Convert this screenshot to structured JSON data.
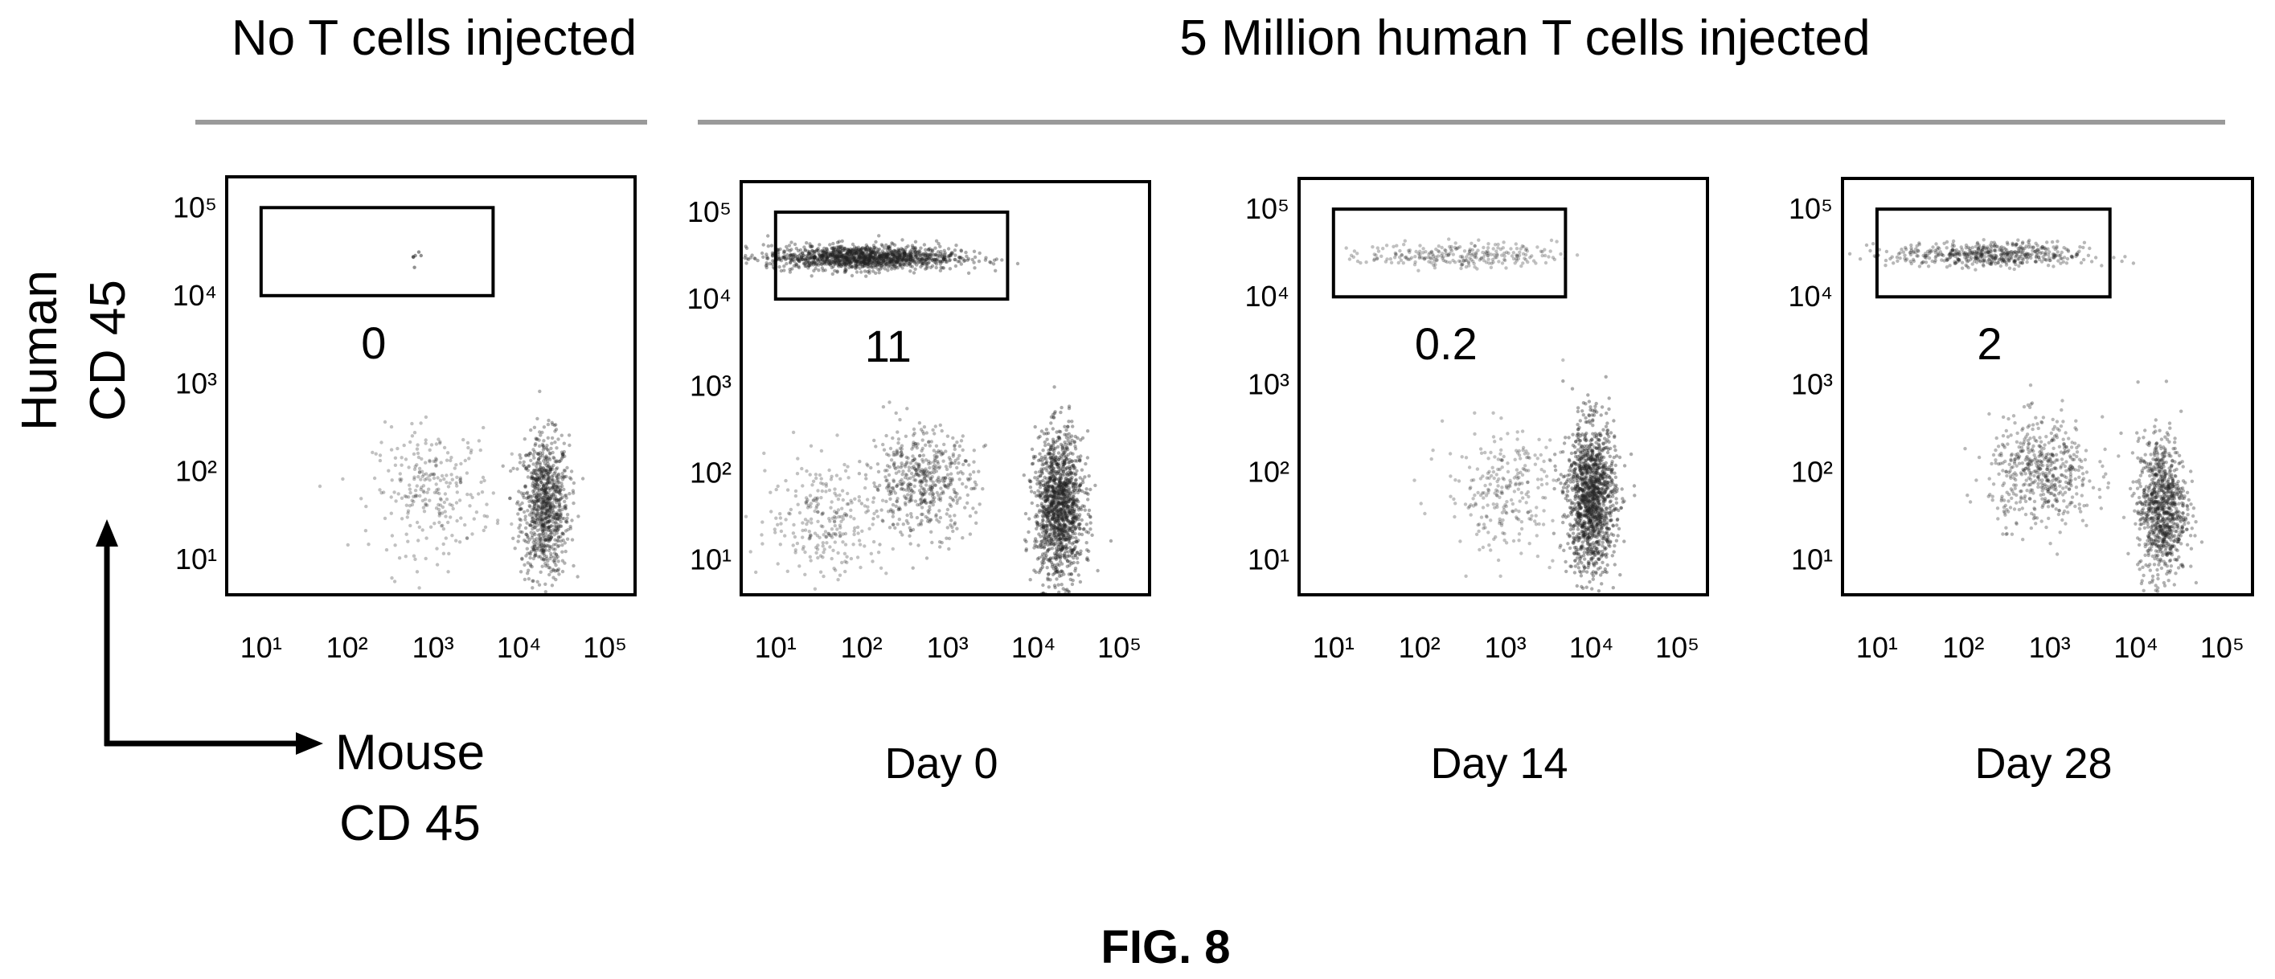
{
  "group_labels": {
    "control": "No T cells injected",
    "treated": "5 Million human T cells injected"
  },
  "axis_labels": {
    "y_line1": "Human",
    "y_line2": "CD 45",
    "x_line1": "Mouse",
    "x_line2": "CD 45"
  },
  "figure_label": "FIG. 8",
  "chart_data": [
    {
      "type": "scatter",
      "subtitle": "",
      "xlabel": "Mouse CD 45",
      "ylabel": "Human CD 45",
      "x_scale": "log",
      "y_scale": "log",
      "xticks": [
        "10¹",
        "10²",
        "10³",
        "10⁴",
        "10⁵"
      ],
      "yticks": [
        "10¹",
        "10²",
        "10³",
        "10⁴",
        "10⁵"
      ],
      "gate_percent": "0",
      "gate": {
        "x_range": [
          10,
          5000
        ],
        "y_range": [
          10000,
          100000
        ]
      },
      "populations": [
        {
          "x": 20000,
          "y": 40,
          "density": "high"
        },
        {
          "x": 1000,
          "y": 60,
          "density": "low"
        },
        {
          "x": 600,
          "y": 30000,
          "density": "trace"
        }
      ]
    },
    {
      "type": "scatter",
      "subtitle": "Day 0",
      "xlabel": "Mouse CD 45",
      "ylabel": "Human CD 45",
      "x_scale": "log",
      "y_scale": "log",
      "xticks": [
        "10¹",
        "10²",
        "10³",
        "10⁴",
        "10⁵"
      ],
      "yticks": [
        "10¹",
        "10²",
        "10³",
        "10⁴",
        "10⁵"
      ],
      "gate_percent": "11",
      "gate": {
        "x_range": [
          10,
          5000
        ],
        "y_range": [
          10000,
          100000
        ]
      },
      "populations": [
        {
          "x": 100,
          "y": 30000,
          "density": "very high"
        },
        {
          "x": 20000,
          "y": 40,
          "density": "very high"
        },
        {
          "x": 500,
          "y": 80,
          "density": "medium"
        },
        {
          "x": 40,
          "y": 30,
          "density": "low"
        }
      ]
    },
    {
      "type": "scatter",
      "subtitle": "Day 14",
      "xlabel": "Mouse CD 45",
      "ylabel": "Human CD 45",
      "x_scale": "log",
      "y_scale": "log",
      "xticks": [
        "10¹",
        "10²",
        "10³",
        "10⁴",
        "10⁵"
      ],
      "yticks": [
        "10¹",
        "10²",
        "10³",
        "10⁴",
        "10⁵"
      ],
      "gate_percent": "0.2",
      "gate": {
        "x_range": [
          10,
          5000
        ],
        "y_range": [
          10000,
          100000
        ]
      },
      "populations": [
        {
          "x": 10000,
          "y": 50,
          "density": "very high"
        },
        {
          "x": 1000,
          "y": 60,
          "density": "low"
        },
        {
          "x": 300,
          "y": 30000,
          "density": "low"
        }
      ]
    },
    {
      "type": "scatter",
      "subtitle": "Day 28",
      "xlabel": "Mouse CD 45",
      "ylabel": "Human CD 45",
      "x_scale": "log",
      "y_scale": "log",
      "xticks": [
        "10¹",
        "10²",
        "10³",
        "10⁴",
        "10⁵"
      ],
      "yticks": [
        "10¹",
        "10²",
        "10³",
        "10⁴",
        "10⁵"
      ],
      "gate_percent": "2",
      "gate": {
        "x_range": [
          10,
          5000
        ],
        "y_range": [
          10000,
          100000
        ]
      },
      "populations": [
        {
          "x": 200,
          "y": 30000,
          "density": "medium"
        },
        {
          "x": 20000,
          "y": 40,
          "density": "high"
        },
        {
          "x": 800,
          "y": 100,
          "density": "medium"
        }
      ]
    }
  ]
}
